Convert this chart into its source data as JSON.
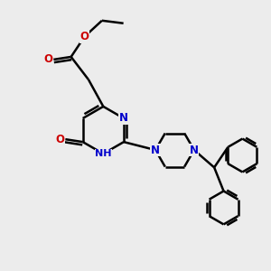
{
  "bg_color": "#ececec",
  "bond_color": "#000000",
  "N_color": "#0000cc",
  "O_color": "#cc0000",
  "line_width": 1.8,
  "font_size": 8.5,
  "fig_size": [
    3.0,
    3.0
  ],
  "dpi": 100,
  "xlim": [
    0,
    10
  ],
  "ylim": [
    0,
    10
  ]
}
